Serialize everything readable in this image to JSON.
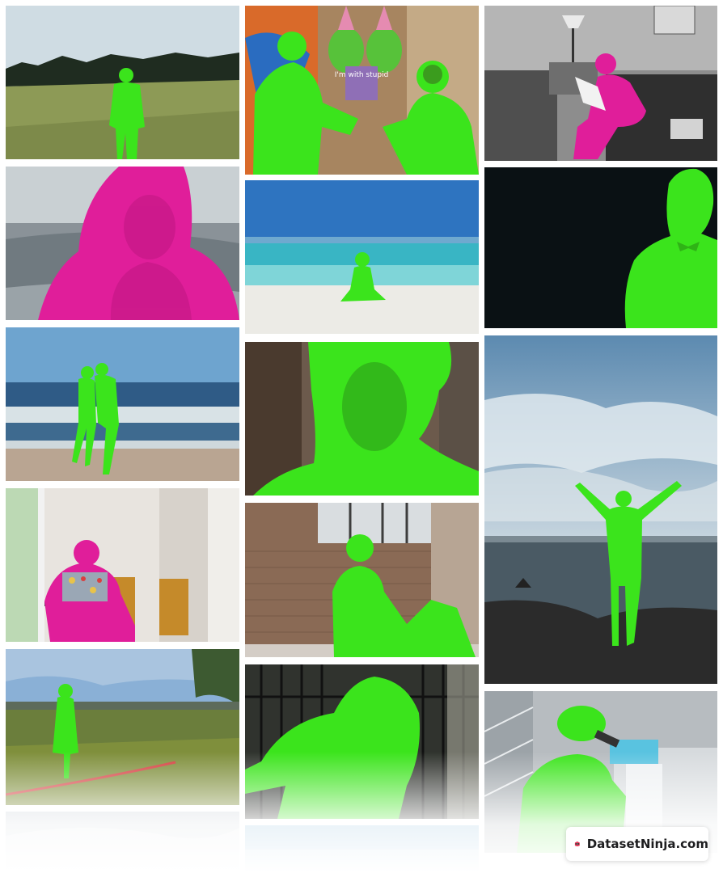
{
  "gallery": {
    "mask_colors": {
      "primary": "#3be41c",
      "secondary": "#e01e9a"
    },
    "tiles": [
      {
        "name": "hiker-field",
        "mask": "green"
      },
      {
        "name": "graffiti-couple",
        "mask": "green",
        "sign_text": "I'm with stupid"
      },
      {
        "name": "reading-bw-room",
        "mask": "magenta"
      },
      {
        "name": "woman-sweater-portrait",
        "mask": "magenta"
      },
      {
        "name": "beach-sitting",
        "mask": "green"
      },
      {
        "name": "bowtie-man-dark",
        "mask": "green"
      },
      {
        "name": "couple-beach-waves",
        "mask": "green"
      },
      {
        "name": "woman-closeup-bangs",
        "mask": "green"
      },
      {
        "name": "man-on-rock-sea",
        "mask": "green"
      },
      {
        "name": "laptop-office",
        "mask": "magenta"
      },
      {
        "name": "woman-brick-wall",
        "mask": "green"
      },
      {
        "name": "girl-sprinkler-field",
        "mask": "green"
      },
      {
        "name": "woman-fence-night",
        "mask": "green"
      },
      {
        "name": "scientist-microscope",
        "mask": "green"
      }
    ]
  },
  "badge": {
    "text": "DatasetNinja.com",
    "logo_color": "#e8395a"
  }
}
